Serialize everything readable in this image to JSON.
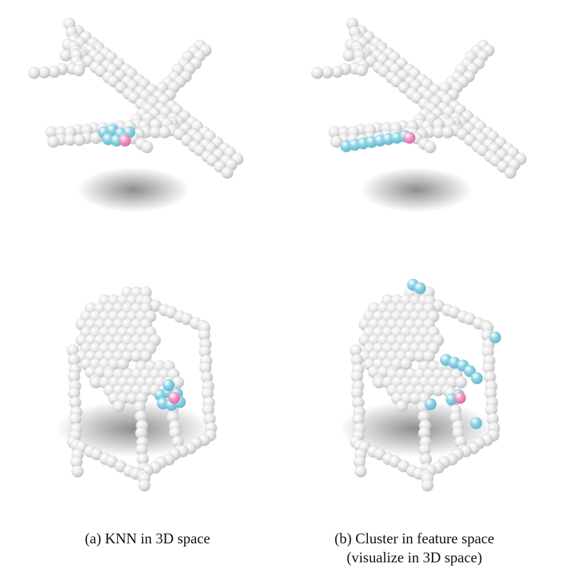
{
  "figure": {
    "captions": [
      {
        "lines": [
          "(a) KNN in 3D space"
        ]
      },
      {
        "lines": [
          "(b) Cluster in feature space",
          "(visualize in 3D space)"
        ]
      }
    ],
    "colors": {
      "point": "#ececec",
      "point_shade": "#bdbdbd",
      "neighbor": "#8fd3e6",
      "center": "#f29ac4",
      "shadow": "#7a7a7a"
    },
    "panels": [
      {
        "shape": "airplane",
        "method": "knn"
      },
      {
        "shape": "airplane",
        "method": "cluster"
      },
      {
        "shape": "chair",
        "method": "knn"
      },
      {
        "shape": "chair",
        "method": "cluster"
      }
    ]
  }
}
